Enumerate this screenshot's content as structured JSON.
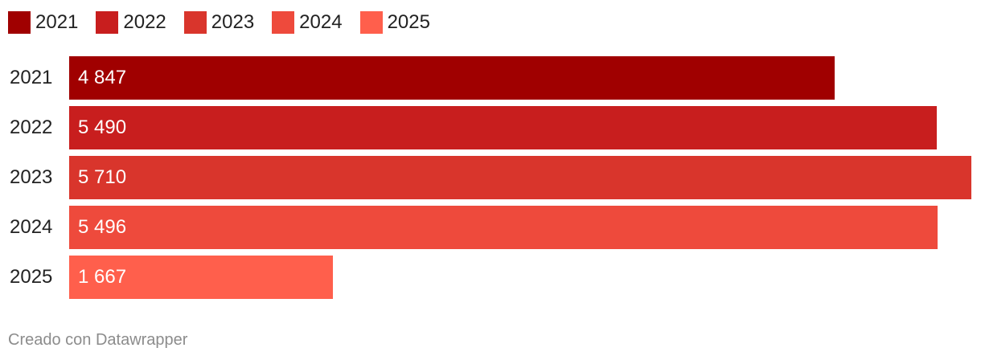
{
  "chart_data": {
    "type": "bar",
    "orientation": "horizontal",
    "categories": [
      "2021",
      "2022",
      "2023",
      "2024",
      "2025"
    ],
    "values": [
      4847,
      5490,
      5710,
      5496,
      1667
    ],
    "value_labels": [
      "4 847",
      "5 490",
      "5 710",
      "5 496",
      "1 667"
    ],
    "colors": [
      "#a00000",
      "#c81e1e",
      "#d9352c",
      "#ee4a3c",
      "#ff5f4c"
    ],
    "legend": {
      "placement": "top-left",
      "entries": [
        "2021",
        "2022",
        "2023",
        "2024",
        "2025"
      ]
    },
    "xlim": [
      0,
      5710
    ],
    "grid": false
  },
  "footer": {
    "credit": "Creado con Datawrapper"
  }
}
